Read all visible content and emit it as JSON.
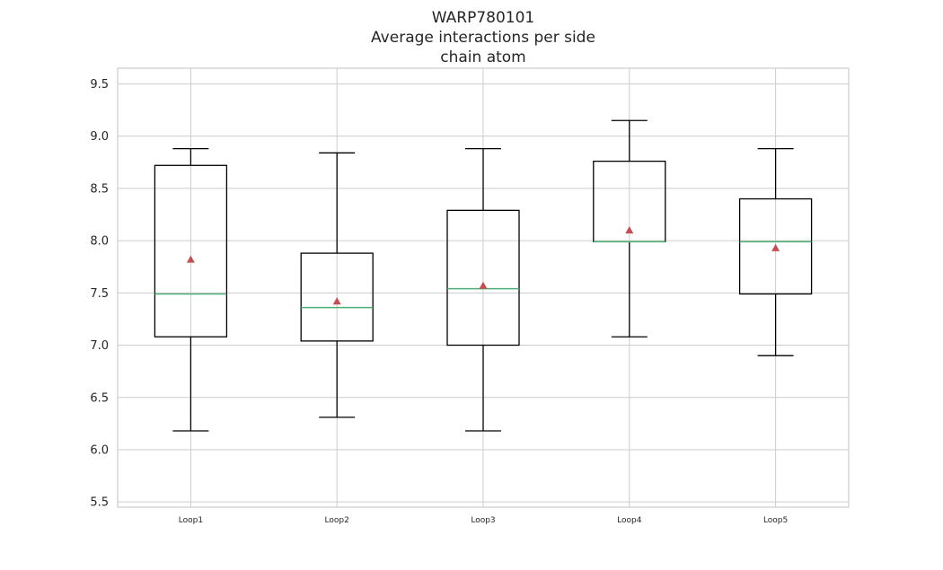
{
  "chart_data": {
    "type": "box",
    "title_lines": [
      "WARP780101",
      "Average interactions per side",
      "chain atom"
    ],
    "xlabel": "",
    "ylabel": "",
    "ylim": [
      5.45,
      9.65
    ],
    "yticks": [
      "5.5",
      "6.0",
      "6.5",
      "7.0",
      "7.5",
      "8.0",
      "8.5",
      "9.0",
      "9.5"
    ],
    "grid": true,
    "categories": [
      "Loop1",
      "Loop2",
      "Loop3",
      "Loop4",
      "Loop5"
    ],
    "boxes": [
      {
        "label": "Loop1",
        "whisker_low": 6.18,
        "q1": 7.08,
        "median": 7.49,
        "q3": 8.72,
        "whisker_high": 8.88,
        "mean": 7.82
      },
      {
        "label": "Loop2",
        "whisker_low": 6.31,
        "q1": 7.04,
        "median": 7.36,
        "q3": 7.88,
        "whisker_high": 8.84,
        "mean": 7.42
      },
      {
        "label": "Loop3",
        "whisker_low": 6.18,
        "q1": 7.0,
        "median": 7.54,
        "q3": 8.29,
        "whisker_high": 8.88,
        "mean": 7.57
      },
      {
        "label": "Loop4",
        "whisker_low": 7.08,
        "q1": 7.99,
        "median": 7.99,
        "q3": 8.76,
        "whisker_high": 9.15,
        "mean": 8.1
      },
      {
        "label": "Loop5",
        "whisker_low": 6.9,
        "q1": 7.49,
        "median": 7.99,
        "q3": 8.4,
        "whisker_high": 8.88,
        "mean": 7.93
      }
    ],
    "colors": {
      "box": "#000000",
      "median": "#4caf74",
      "mean_marker": "#c44e52",
      "grid": "#cccccc",
      "frame": "#cccccc"
    }
  }
}
